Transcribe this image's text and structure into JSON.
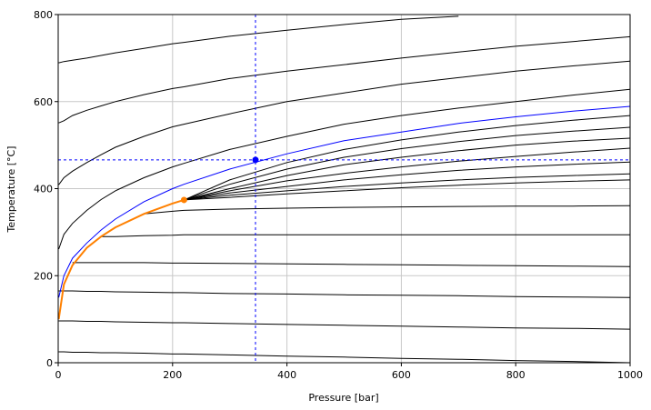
{
  "chart_data": {
    "type": "line",
    "x_label": "Pressure [bar]",
    "y_label": "Temperature [°C]",
    "xlim": [
      0,
      1000
    ],
    "ylim": [
      0,
      800
    ],
    "xticks": [
      0,
      200,
      400,
      600,
      800,
      1000
    ],
    "yticks": [
      0,
      200,
      400,
      600,
      800
    ],
    "grid": true,
    "x": [
      1,
      10,
      25,
      50,
      75,
      100,
      150,
      200,
      220,
      300,
      400,
      500,
      600,
      700,
      800,
      900,
      1000
    ],
    "series": [
      {
        "color": "#000000",
        "values": [
          689,
          692,
          695,
          700,
          706,
          712,
          722,
          733,
          736,
          750,
          764,
          777,
          789,
          796,
          null,
          null,
          null
        ]
      },
      {
        "color": "#000000",
        "values": [
          551,
          556,
          568,
          580,
          590,
          600,
          616,
          630,
          634,
          653,
          670,
          685,
          700,
          714,
          727,
          738,
          749
        ]
      },
      {
        "color": "#000000",
        "values": [
          409,
          425,
          440,
          460,
          478,
          495,
          520,
          542,
          548,
          572,
          600,
          620,
          640,
          655,
          670,
          682,
          693
        ]
      },
      {
        "color": "#000000",
        "values": [
          261,
          295,
          320,
          350,
          375,
          395,
          425,
          450,
          458,
          490,
          520,
          548,
          568,
          585,
          600,
          615,
          628
        ]
      },
      {
        "color": "#000000",
        "values": [
          null,
          null,
          null,
          null,
          null,
          null,
          null,
          null,
          374,
          420,
          460,
          490,
          512,
          530,
          545,
          557,
          568
        ]
      },
      {
        "color": "#000000",
        "values": [
          null,
          null,
          null,
          null,
          null,
          null,
          null,
          null,
          374,
          410,
          445,
          472,
          492,
          508,
          522,
          532,
          541
        ]
      },
      {
        "color": "#000000",
        "values": [
          null,
          null,
          null,
          null,
          null,
          null,
          null,
          null,
          374,
          400,
          430,
          455,
          472,
          487,
          500,
          509,
          516
        ]
      },
      {
        "color": "#000000",
        "values": [
          null,
          null,
          null,
          null,
          null,
          null,
          null,
          null,
          374,
          395,
          418,
          435,
          450,
          463,
          474,
          484,
          493
        ]
      },
      {
        "color": "#000000",
        "values": [
          null,
          null,
          null,
          null,
          null,
          null,
          null,
          null,
          374,
          390,
          405,
          420,
          432,
          442,
          450,
          456,
          461
        ]
      },
      {
        "color": "#000000",
        "values": [
          null,
          null,
          null,
          null,
          null,
          null,
          null,
          null,
          374,
          385,
          395,
          405,
          413,
          420,
          426,
          430,
          434
        ]
      },
      {
        "color": "#000000",
        "values": [
          null,
          null,
          null,
          null,
          null,
          null,
          null,
          null,
          374,
          380,
          388,
          395,
          402,
          408,
          413,
          417,
          420
        ]
      },
      {
        "color": "#000000",
        "values": [
          null,
          null,
          null,
          null,
          null,
          null,
          342,
          348,
          350,
          353,
          355,
          357,
          358,
          359,
          360,
          360,
          361
        ]
      },
      {
        "color": "#000000",
        "values": [
          null,
          null,
          null,
          null,
          290,
          290,
          292,
          293,
          294,
          294,
          294,
          294,
          294,
          294,
          294,
          294,
          294
        ]
      },
      {
        "color": "#000000",
        "values": [
          null,
          null,
          230,
          230,
          230,
          230,
          230,
          229,
          229,
          228,
          227,
          226,
          225,
          224,
          223,
          222,
          221
        ]
      },
      {
        "color": "#000000",
        "values": [
          165,
          165,
          165,
          164,
          164,
          163,
          162,
          161,
          161,
          159,
          158,
          156,
          155,
          154,
          152,
          151,
          150
        ]
      },
      {
        "color": "#000000",
        "values": [
          96,
          96,
          96,
          95,
          95,
          94,
          93,
          92,
          92,
          90,
          88,
          86,
          84,
          82,
          80,
          79,
          77
        ]
      },
      {
        "color": "#000000",
        "values": [
          25,
          25,
          24,
          24,
          23,
          23,
          22,
          20,
          20,
          18,
          15,
          13,
          10,
          8,
          5,
          3,
          0
        ]
      },
      {
        "color": "#0000ff",
        "values": [
          150,
          200,
          240,
          275,
          305,
          330,
          370,
          400,
          410,
          445,
          480,
          510,
          530,
          550,
          565,
          578,
          589
        ]
      },
      {
        "color": "#ff8000",
        "width": 2,
        "values": [
          100,
          180,
          224,
          264,
          290,
          311,
          342,
          366,
          374,
          null,
          null,
          null,
          null,
          null,
          null,
          null,
          null
        ]
      }
    ],
    "markers": [
      {
        "x": 220,
        "y": 374,
        "color": "#ff8000",
        "crosshair": false
      },
      {
        "x": 345,
        "y": 466,
        "color": "#0000ff",
        "crosshair": true
      }
    ]
  }
}
